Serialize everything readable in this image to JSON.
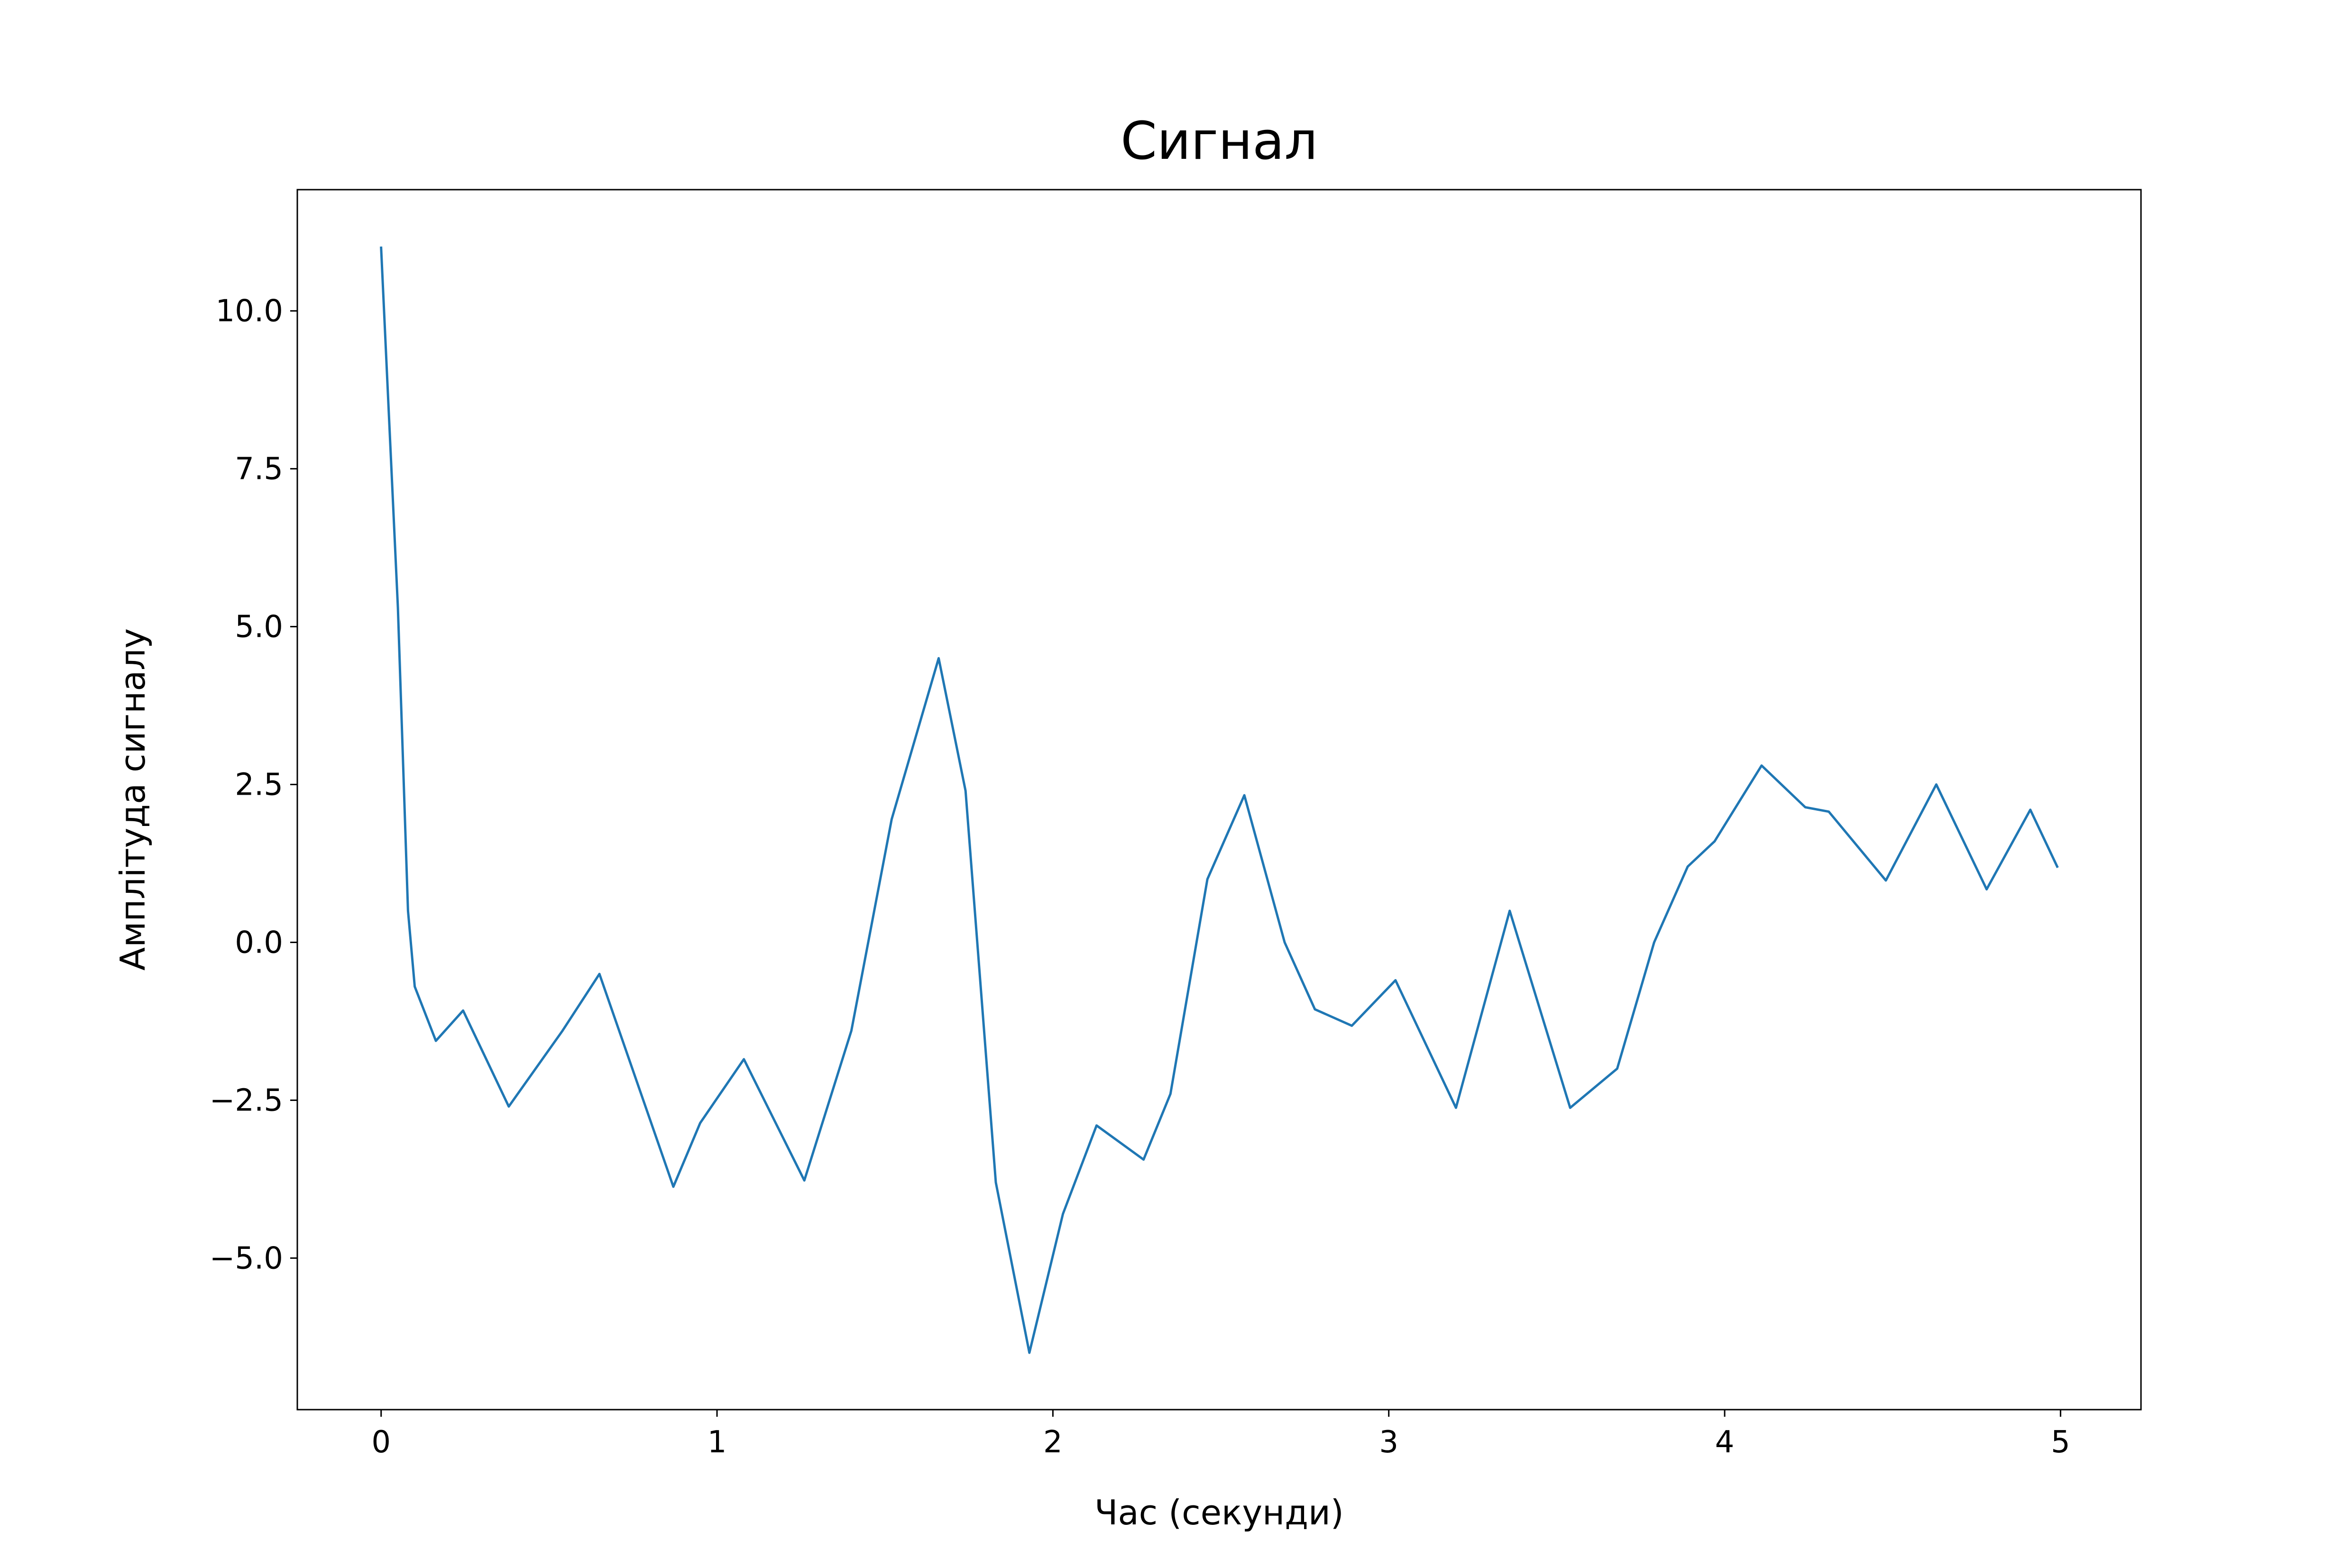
{
  "chart_data": {
    "type": "line",
    "title": "Сигнал",
    "x_label": "Час (секунди)",
    "y_label": "Амплітуда сигналу",
    "x": [
      0,
      0.05,
      0.08,
      0.1,
      0.163,
      0.244,
      0.38,
      0.54,
      0.65,
      0.87,
      0.95,
      1.08,
      1.26,
      1.4,
      1.52,
      1.66,
      1.74,
      1.83,
      1.93,
      2.03,
      2.13,
      2.27,
      2.35,
      2.46,
      2.57,
      2.69,
      2.78,
      2.89,
      3.02,
      3.2,
      3.36,
      3.54,
      3.68,
      3.79,
      3.89,
      3.97,
      4.11,
      4.24,
      4.31,
      4.48,
      4.63,
      4.78,
      4.91,
      4.99
    ],
    "series": [
      {
        "name": "Сигнал",
        "color": "#1f77b4",
        "values": [
          11.0,
          5.3,
          0.5,
          -0.7,
          -1.56,
          -1.08,
          -2.6,
          -1.4,
          -0.5,
          -3.87,
          -2.86,
          -1.85,
          -3.77,
          -1.4,
          1.95,
          4.5,
          2.4,
          -3.8,
          -6.5,
          -4.3,
          -2.9,
          -3.44,
          -2.4,
          1.0,
          2.33,
          0.0,
          -1.06,
          -1.32,
          -0.6,
          -2.62,
          0.5,
          -2.62,
          -2.0,
          0.0,
          1.2,
          1.6,
          2.8,
          2.14,
          2.07,
          0.98,
          2.5,
          0.84,
          2.1,
          1.2
        ]
      }
    ],
    "xlim": [
      -0.2495,
      5.2395
    ],
    "ylim": [
      -7.4,
      11.92
    ],
    "xticks": [
      0,
      1,
      2,
      3,
      4,
      5
    ],
    "yticks": [
      {
        "value": -5,
        "label": "−5.0"
      },
      {
        "value": -2.5,
        "label": "−2.5"
      },
      {
        "value": 0,
        "label": "0.0"
      },
      {
        "value": 2.5,
        "label": "2.5"
      },
      {
        "value": 5,
        "label": "5.0"
      },
      {
        "value": 7.5,
        "label": "7.5"
      },
      {
        "value": 10,
        "label": "10.0"
      }
    ],
    "grid": false
  }
}
